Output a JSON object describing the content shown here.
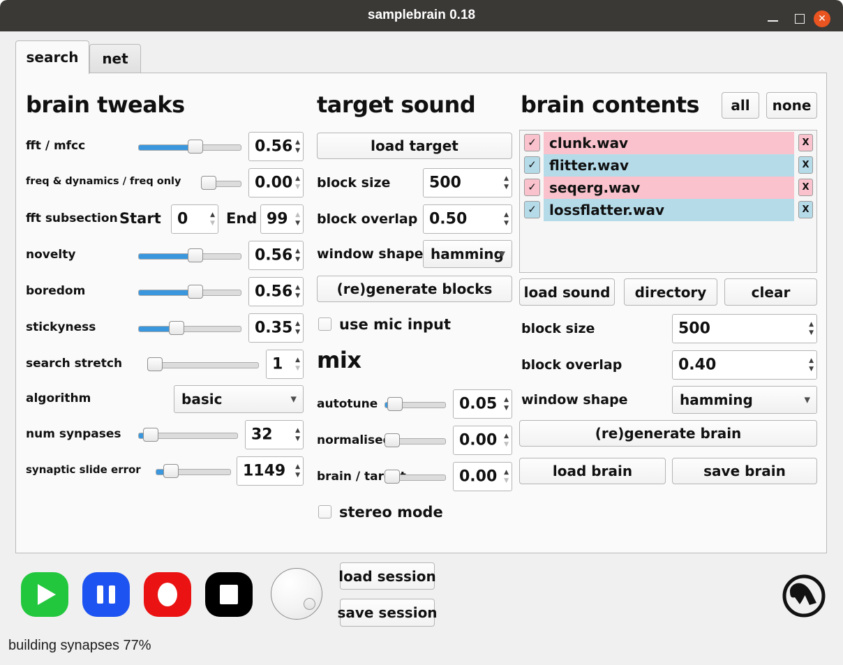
{
  "window": {
    "title": "samplebrain 0.18",
    "controls": {
      "minimize": "minimize-icon",
      "maximize": "maximize-icon",
      "close": "close-icon",
      "close_glyph": "✕"
    }
  },
  "glyphs": {
    "up": "▲",
    "down": "▼",
    "caret": "▼",
    "check": "✓",
    "x": "X"
  },
  "colors": {
    "accent_blue": "#3b97dd",
    "row_pink": "#f9c2cc",
    "row_blue": "#b5dbe9",
    "close_orange": "#e95420",
    "play_green": "#22c73e",
    "pause_blue": "#1d53f0",
    "record_red": "#ea1212",
    "stop_black": "#000000",
    "titlebar": "#3b3936"
  },
  "tabs": [
    {
      "label": "search",
      "active": true
    },
    {
      "label": "net",
      "active": false
    }
  ],
  "brain_tweaks": {
    "heading": "brain tweaks",
    "fft_mfcc": {
      "label": "fft / mfcc",
      "value": "0.56",
      "pct": 56
    },
    "freq_dyn": {
      "label": "freq & dynamics / freq only",
      "value": "0.00",
      "pct": 0
    },
    "fft_subsection": {
      "label": "fft subsection",
      "start_label": "Start",
      "start_value": "0",
      "end_label": "End",
      "end_value": "99"
    },
    "novelty": {
      "label": "novelty",
      "value": "0.56",
      "pct": 56
    },
    "boredom": {
      "label": "boredom",
      "value": "0.56",
      "pct": 56
    },
    "stickyness": {
      "label": "stickyness",
      "value": "0.35",
      "pct": 35
    },
    "search_stretch": {
      "label": "search stretch",
      "value": "1",
      "pct": 0
    },
    "algorithm": {
      "label": "algorithm",
      "value": "basic"
    },
    "num_synpases": {
      "label": "num synpases",
      "value": "32",
      "pct": 6
    },
    "synaptic_slide_error": {
      "label": "synaptic slide error",
      "value": "1149",
      "pct": 13
    }
  },
  "target_sound": {
    "heading": "target sound",
    "load_target": "load target",
    "block_size": {
      "label": "block size",
      "value": "500"
    },
    "block_overlap": {
      "label": "block overlap",
      "value": "0.50"
    },
    "window_shape": {
      "label": "window shape",
      "value": "hamming"
    },
    "regenerate": "(re)generate blocks",
    "use_mic": "use mic input"
  },
  "mix": {
    "heading": "mix",
    "autotune": {
      "label": "autotune",
      "value": "0.05",
      "pct": 6
    },
    "normalised": {
      "label": "normalised",
      "value": "0.00",
      "pct": 0
    },
    "brain_target": {
      "label": "brain / target",
      "value": "0.00",
      "pct": 0
    },
    "stereo": "stereo mode"
  },
  "brain_contents": {
    "heading": "brain contents",
    "all_button": "all",
    "none_button": "none",
    "samples": [
      {
        "name": "clunk.wav",
        "checked": true,
        "color": "#f9c2cc"
      },
      {
        "name": "flitter.wav",
        "checked": true,
        "color": "#b5dbe9"
      },
      {
        "name": "seqerg.wav",
        "checked": true,
        "color": "#f9c2cc"
      },
      {
        "name": "lossflatter.wav",
        "checked": true,
        "color": "#b5dbe9"
      }
    ],
    "load_sound": "load sound",
    "directory": "directory",
    "clear": "clear",
    "block_size": {
      "label": "block size",
      "value": "500"
    },
    "block_overlap": {
      "label": "block overlap",
      "value": "0.40"
    },
    "window_shape": {
      "label": "window shape",
      "value": "hamming"
    },
    "regenerate": "(re)generate brain",
    "load_brain": "load brain",
    "save_brain": "save brain"
  },
  "transport": {
    "buttons": [
      {
        "name": "play-icon",
        "color": "#22c73e"
      },
      {
        "name": "pause-icon",
        "color": "#1d53f0"
      },
      {
        "name": "record-icon",
        "color": "#ea1212"
      },
      {
        "name": "stop-icon",
        "color": "#000000"
      }
    ],
    "knob": "volume-knob"
  },
  "session": {
    "load": "load session",
    "save": "save session"
  },
  "logo": "aphex-twin-logo",
  "status": "building synapses 77%"
}
